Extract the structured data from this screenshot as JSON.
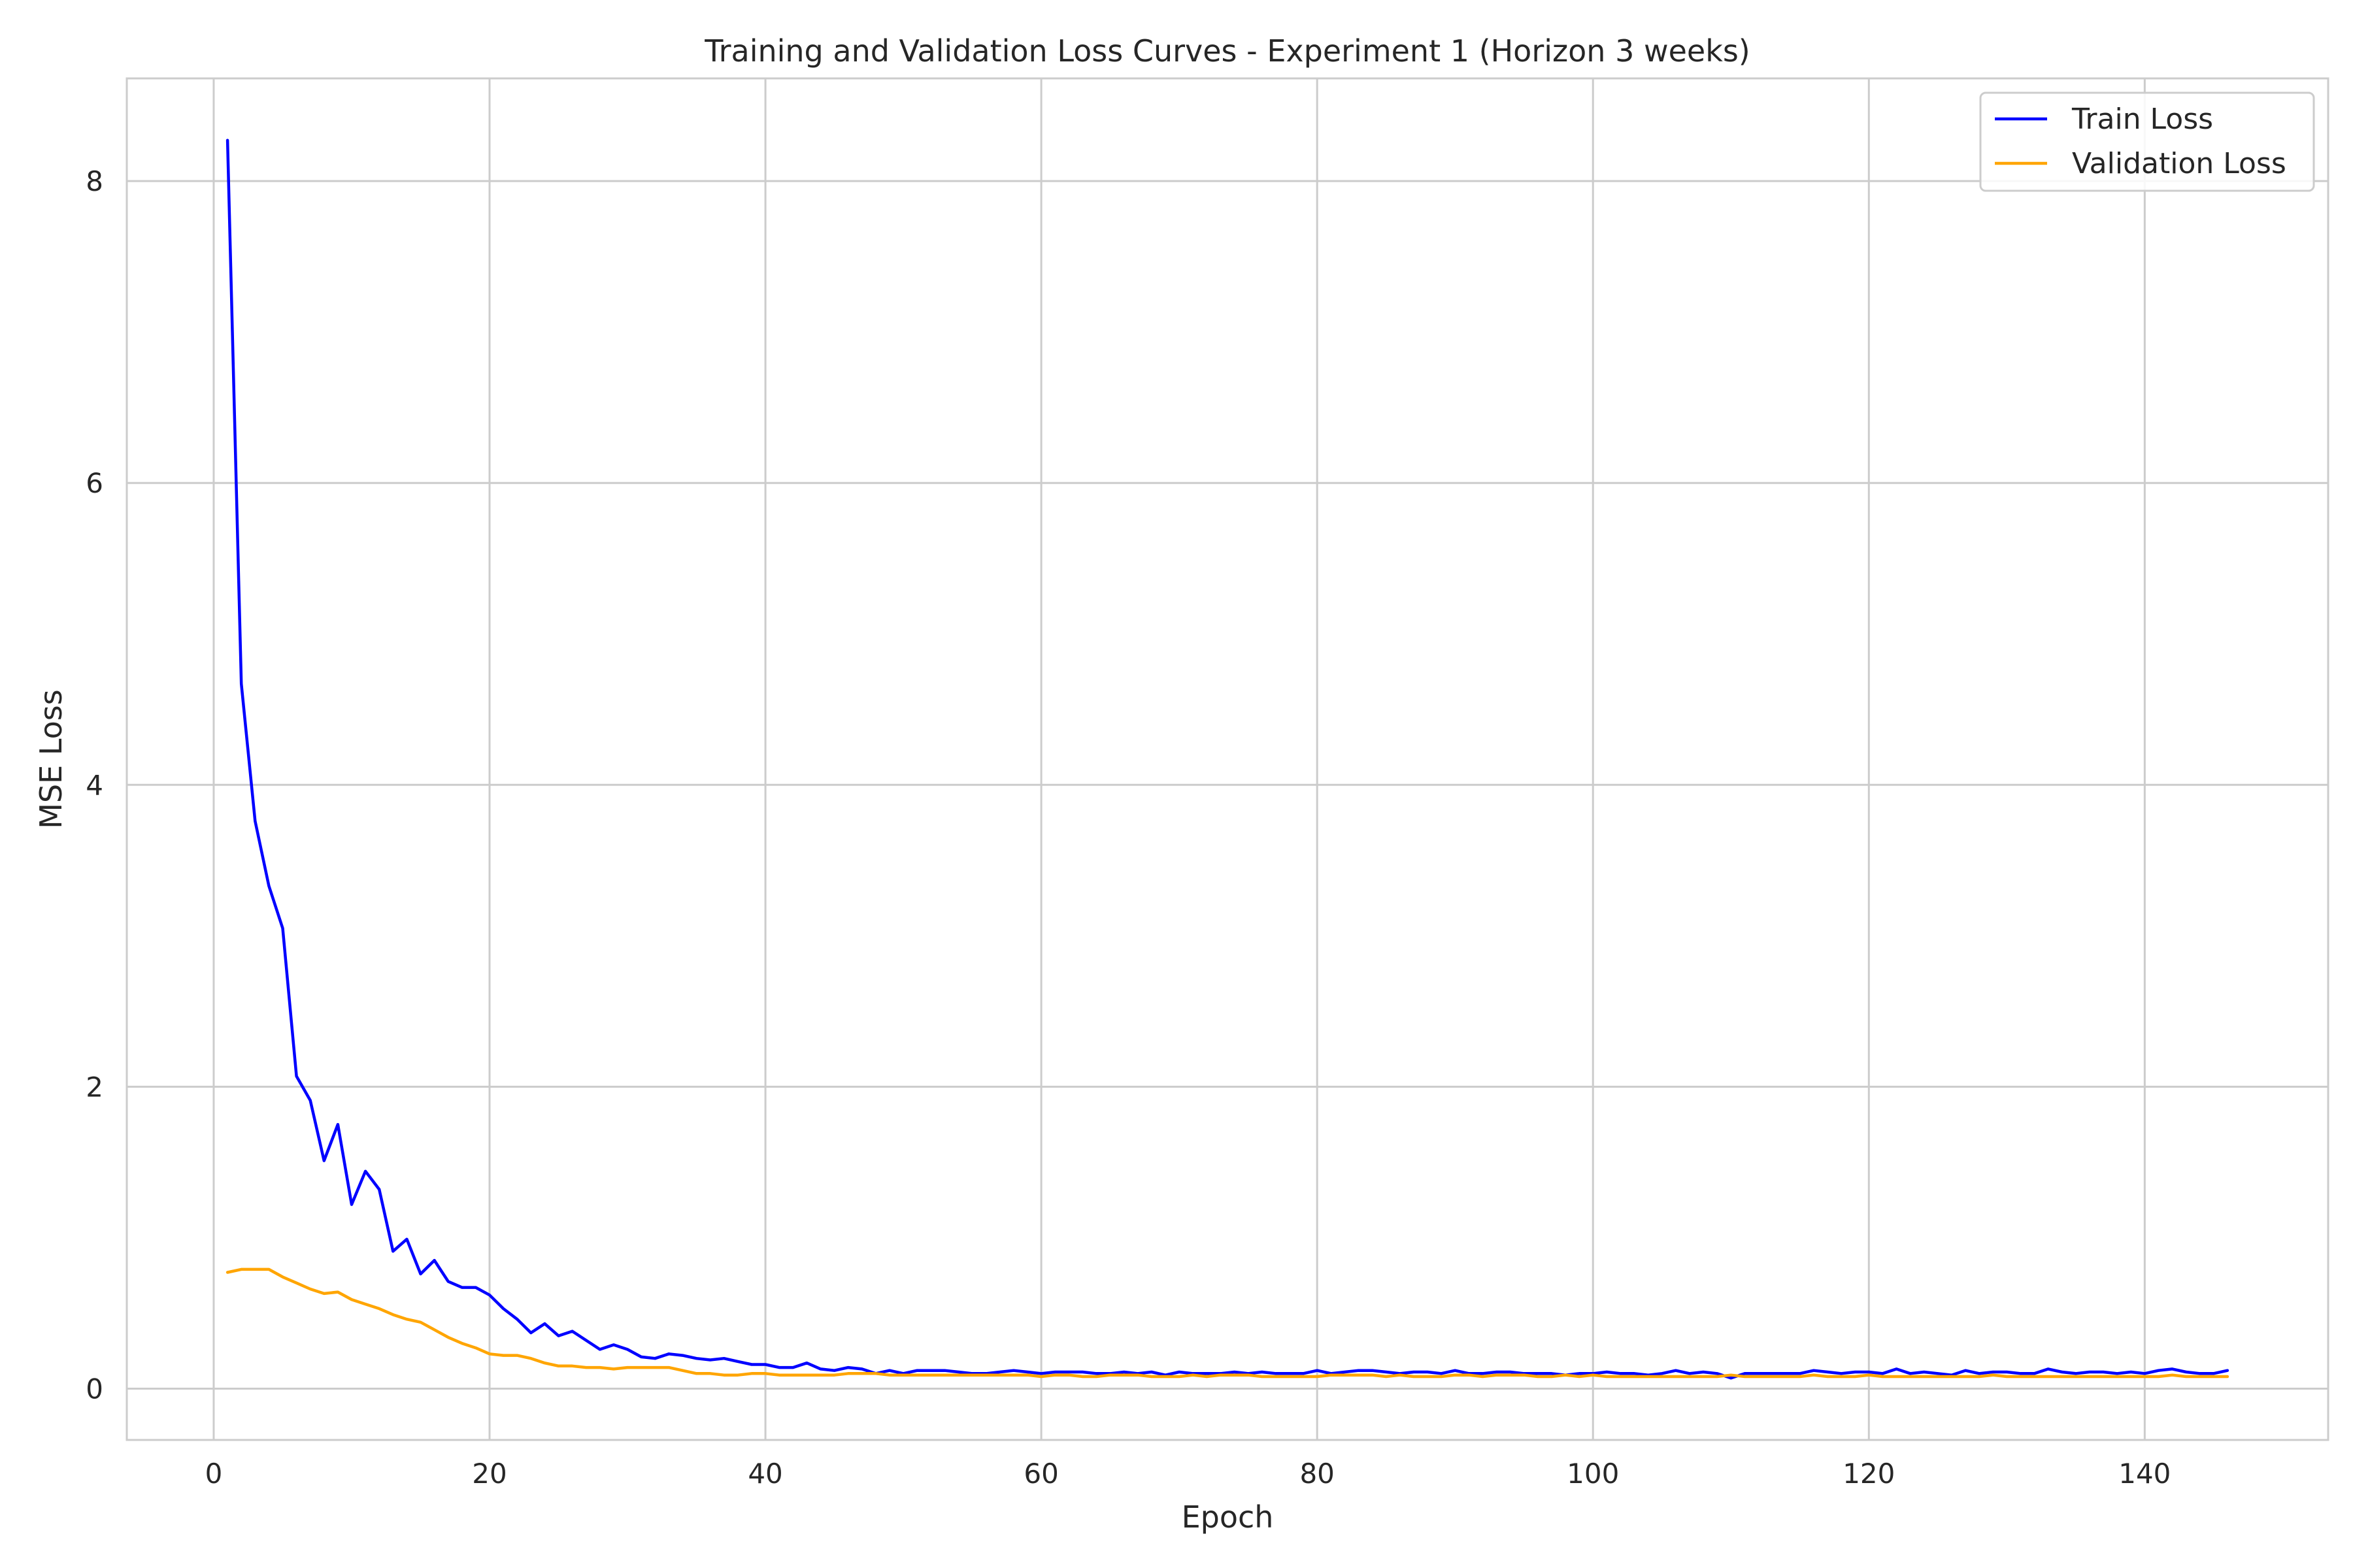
{
  "chart_data": {
    "type": "line",
    "title": "Training and Validation Loss Curves - Experiment 1 (Horizon 3 weeks)",
    "xlabel": "Epoch",
    "ylabel": "MSE Loss",
    "xlim": [
      -6.3,
      153.3
    ],
    "ylim": [
      -0.34,
      8.68
    ],
    "xticks": [
      0,
      20,
      40,
      60,
      80,
      100,
      120,
      140
    ],
    "yticks": [
      0,
      2,
      4,
      6,
      8
    ],
    "grid": true,
    "legend_position": "top-right",
    "series": [
      {
        "name": "Train Loss",
        "color": "#0000ff",
        "x": [
          1,
          2,
          3,
          4,
          5,
          6,
          7,
          8,
          9,
          10,
          11,
          12,
          13,
          14,
          15,
          16,
          17,
          18,
          19,
          20,
          21,
          22,
          23,
          24,
          25,
          26,
          27,
          28,
          29,
          30,
          31,
          32,
          33,
          34,
          35,
          36,
          37,
          38,
          39,
          40,
          41,
          42,
          43,
          44,
          45,
          46,
          47,
          48,
          49,
          50,
          51,
          52,
          53,
          54,
          55,
          56,
          57,
          58,
          59,
          60,
          61,
          62,
          63,
          64,
          65,
          66,
          67,
          68,
          69,
          70,
          71,
          72,
          73,
          74,
          75,
          76,
          77,
          78,
          79,
          80,
          81,
          82,
          83,
          84,
          85,
          86,
          87,
          88,
          89,
          90,
          91,
          92,
          93,
          94,
          95,
          96,
          97,
          98,
          99,
          100,
          101,
          102,
          103,
          104,
          105,
          106,
          107,
          108,
          109,
          110,
          111,
          112,
          113,
          114,
          115,
          116,
          117,
          118,
          119,
          120,
          121,
          122,
          123,
          124,
          125,
          126,
          127,
          128,
          129,
          130,
          131,
          132,
          133,
          134,
          135,
          136,
          137,
          138,
          139,
          140,
          141,
          142,
          143,
          144,
          145,
          146
        ],
        "y": [
          8.27,
          4.67,
          3.76,
          3.33,
          3.05,
          2.07,
          1.91,
          1.51,
          1.75,
          1.22,
          1.44,
          1.32,
          0.91,
          0.99,
          0.76,
          0.85,
          0.71,
          0.67,
          0.67,
          0.62,
          0.53,
          0.46,
          0.37,
          0.43,
          0.35,
          0.38,
          0.32,
          0.26,
          0.29,
          0.26,
          0.21,
          0.2,
          0.23,
          0.22,
          0.2,
          0.19,
          0.2,
          0.18,
          0.16,
          0.16,
          0.14,
          0.14,
          0.17,
          0.13,
          0.12,
          0.14,
          0.13,
          0.1,
          0.12,
          0.1,
          0.12,
          0.12,
          0.12,
          0.11,
          0.1,
          0.1,
          0.11,
          0.12,
          0.11,
          0.1,
          0.11,
          0.11,
          0.11,
          0.1,
          0.1,
          0.11,
          0.1,
          0.11,
          0.09,
          0.11,
          0.1,
          0.1,
          0.1,
          0.11,
          0.1,
          0.11,
          0.1,
          0.1,
          0.1,
          0.12,
          0.1,
          0.11,
          0.12,
          0.12,
          0.11,
          0.1,
          0.11,
          0.11,
          0.1,
          0.12,
          0.1,
          0.1,
          0.11,
          0.11,
          0.1,
          0.1,
          0.1,
          0.09,
          0.1,
          0.1,
          0.11,
          0.1,
          0.1,
          0.09,
          0.1,
          0.12,
          0.1,
          0.11,
          0.1,
          0.07,
          0.1,
          0.1,
          0.1,
          0.1,
          0.1,
          0.12,
          0.11,
          0.1,
          0.11,
          0.11,
          0.1,
          0.13,
          0.1,
          0.11,
          0.1,
          0.09,
          0.12,
          0.1,
          0.11,
          0.11,
          0.1,
          0.1,
          0.13,
          0.11,
          0.1,
          0.11,
          0.11,
          0.1,
          0.11,
          0.1,
          0.12,
          0.13,
          0.11,
          0.1,
          0.1,
          0.12
        ]
      },
      {
        "name": "Validation Loss",
        "color": "#ffa500",
        "x": [
          1,
          2,
          3,
          4,
          5,
          6,
          7,
          8,
          9,
          10,
          11,
          12,
          13,
          14,
          15,
          16,
          17,
          18,
          19,
          20,
          21,
          22,
          23,
          24,
          25,
          26,
          27,
          28,
          29,
          30,
          31,
          32,
          33,
          34,
          35,
          36,
          37,
          38,
          39,
          40,
          41,
          42,
          43,
          44,
          45,
          46,
          47,
          48,
          49,
          50,
          51,
          52,
          53,
          54,
          55,
          56,
          57,
          58,
          59,
          60,
          61,
          62,
          63,
          64,
          65,
          66,
          67,
          68,
          69,
          70,
          71,
          72,
          73,
          74,
          75,
          76,
          77,
          78,
          79,
          80,
          81,
          82,
          83,
          84,
          85,
          86,
          87,
          88,
          89,
          90,
          91,
          92,
          93,
          94,
          95,
          96,
          97,
          98,
          99,
          100,
          101,
          102,
          103,
          104,
          105,
          106,
          107,
          108,
          109,
          110,
          111,
          112,
          113,
          114,
          115,
          116,
          117,
          118,
          119,
          120,
          121,
          122,
          123,
          124,
          125,
          126,
          127,
          128,
          129,
          130,
          131,
          132,
          133,
          134,
          135,
          136,
          137,
          138,
          139,
          140,
          141,
          142,
          143,
          144,
          145,
          146
        ],
        "y": [
          0.77,
          0.79,
          0.79,
          0.79,
          0.74,
          0.7,
          0.66,
          0.63,
          0.64,
          0.59,
          0.56,
          0.53,
          0.49,
          0.46,
          0.44,
          0.39,
          0.34,
          0.3,
          0.27,
          0.23,
          0.22,
          0.22,
          0.2,
          0.17,
          0.15,
          0.15,
          0.14,
          0.14,
          0.13,
          0.14,
          0.14,
          0.14,
          0.14,
          0.12,
          0.1,
          0.1,
          0.09,
          0.09,
          0.1,
          0.1,
          0.09,
          0.09,
          0.09,
          0.09,
          0.09,
          0.1,
          0.1,
          0.1,
          0.09,
          0.09,
          0.09,
          0.09,
          0.09,
          0.09,
          0.09,
          0.09,
          0.09,
          0.09,
          0.09,
          0.08,
          0.09,
          0.09,
          0.08,
          0.08,
          0.09,
          0.09,
          0.09,
          0.08,
          0.08,
          0.08,
          0.09,
          0.08,
          0.09,
          0.09,
          0.09,
          0.08,
          0.08,
          0.08,
          0.08,
          0.08,
          0.09,
          0.09,
          0.09,
          0.09,
          0.08,
          0.09,
          0.08,
          0.08,
          0.08,
          0.09,
          0.09,
          0.08,
          0.09,
          0.09,
          0.09,
          0.08,
          0.08,
          0.09,
          0.08,
          0.09,
          0.08,
          0.08,
          0.08,
          0.08,
          0.08,
          0.08,
          0.08,
          0.08,
          0.08,
          0.09,
          0.08,
          0.08,
          0.08,
          0.08,
          0.08,
          0.09,
          0.08,
          0.08,
          0.08,
          0.09,
          0.08,
          0.08,
          0.08,
          0.08,
          0.08,
          0.08,
          0.08,
          0.08,
          0.09,
          0.08,
          0.08,
          0.08,
          0.08,
          0.08,
          0.08,
          0.08,
          0.08,
          0.08,
          0.08,
          0.08,
          0.08,
          0.09,
          0.08,
          0.08,
          0.08,
          0.08
        ]
      }
    ]
  }
}
